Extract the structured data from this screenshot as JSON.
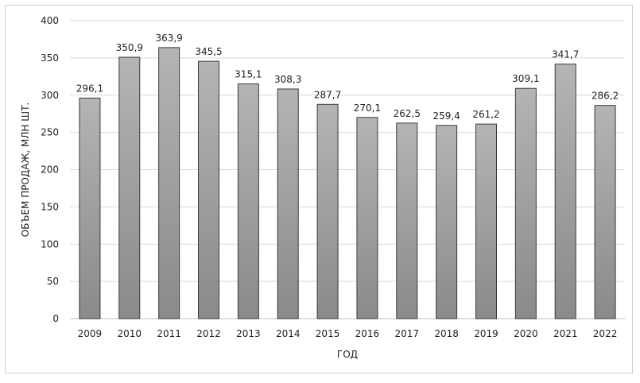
{
  "chart_data": {
    "type": "bar",
    "categories": [
      "2009",
      "2010",
      "2011",
      "2012",
      "2013",
      "2014",
      "2015",
      "2016",
      "2017",
      "2018",
      "2019",
      "2020",
      "2021",
      "2022"
    ],
    "values": [
      296.1,
      350.9,
      363.9,
      345.5,
      315.1,
      308.3,
      287.7,
      270.1,
      262.5,
      259.4,
      261.2,
      309.1,
      341.7,
      286.2
    ],
    "data_labels": [
      "296,1",
      "350,9",
      "363,9",
      "345,5",
      "315,1",
      "308,3",
      "287,7",
      "270,1",
      "262,5",
      "259,4",
      "261,2",
      "309,1",
      "341,7",
      "286,2"
    ],
    "xlabel": "ГОД",
    "ylabel": "ОБЪЕМ ПРОДАЖ, МЛН ШТ.",
    "ylim": [
      0,
      400
    ],
    "yticks": [
      0,
      50,
      100,
      150,
      200,
      250,
      300,
      350,
      400
    ],
    "grid": true,
    "colors": {
      "bar_light": "#b2b2b2",
      "bar_dark": "#8e8e8e",
      "bar_stroke": "#3a3a3a",
      "grid": "#d9d9d9",
      "axis": "#bfbfbf"
    }
  }
}
